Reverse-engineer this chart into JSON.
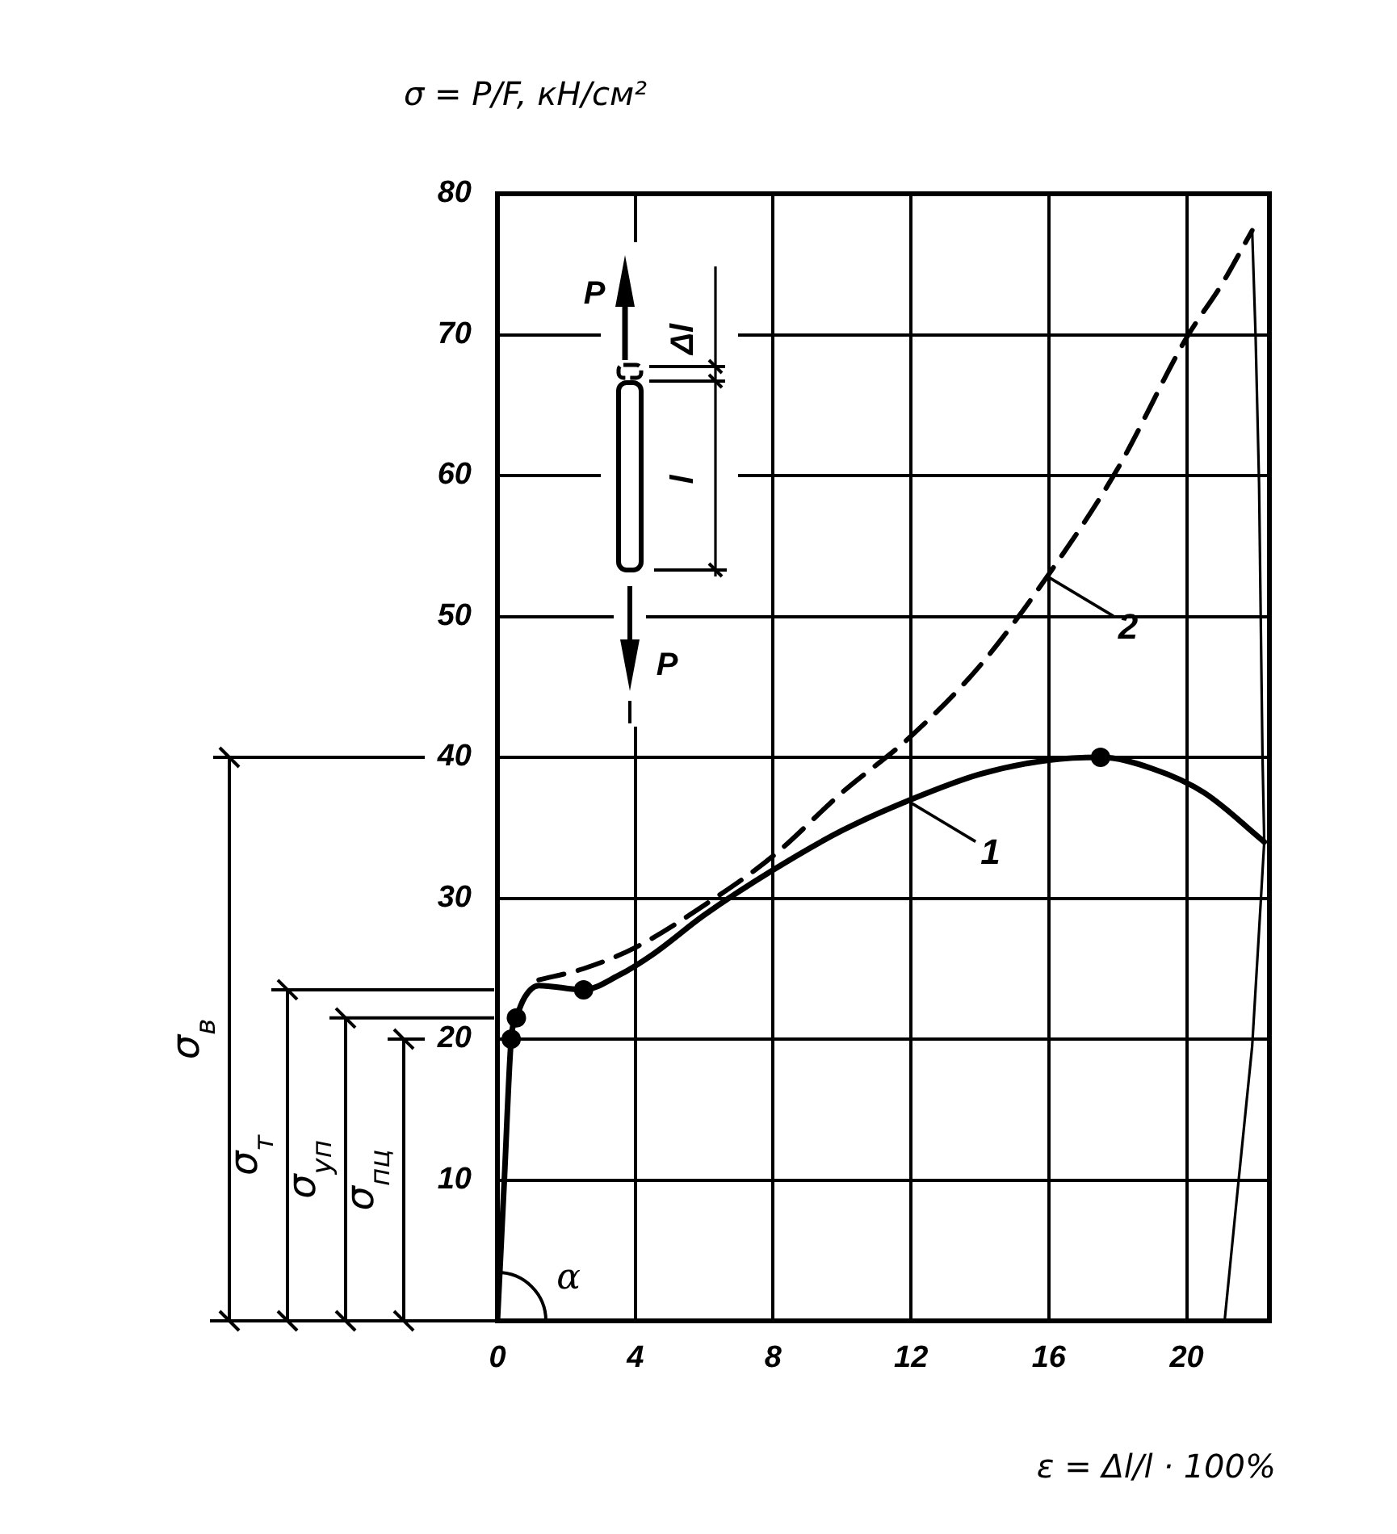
{
  "chart_data": {
    "type": "line",
    "xlabel": "ε = Δl/l · 100%",
    "ylabel": "σ = P/F, кН/см²",
    "xlim": [
      0,
      22.4
    ],
    "xticks": [
      0,
      4,
      8,
      12,
      16,
      20
    ],
    "ylim": [
      0,
      80
    ],
    "yticks": [
      10,
      20,
      30,
      40,
      50,
      60,
      70,
      80
    ],
    "grid": true,
    "marker": "none",
    "line_style": "solid",
    "series": [
      {
        "name": "1",
        "color": "#000000",
        "x": [
          0,
          0.2,
          0.4,
          0.55,
          0.8,
          1.2,
          2.5,
          3.5,
          4.5,
          6,
          8,
          10,
          12,
          14,
          16,
          17.5,
          19,
          20.5,
          22.25
        ],
        "values": [
          0,
          10,
          20,
          21.5,
          23,
          23.8,
          23.5,
          24.5,
          26,
          28.8,
          32,
          34.8,
          37,
          38.8,
          39.8,
          40,
          39.2,
          37.5,
          34
        ]
      },
      {
        "name": "2",
        "color": "#000000",
        "line_style": "dashed",
        "x": [
          1.2,
          2.5,
          4,
          6,
          8,
          10,
          12,
          14,
          16,
          18,
          20,
          21,
          21.9
        ],
        "values": [
          24.2,
          25,
          26.5,
          29.5,
          33,
          37.5,
          41.5,
          46.5,
          53,
          60.5,
          69.8,
          73.5,
          77.4
        ]
      },
      {
        "color": "#000000",
        "x": [
          21.9,
          22,
          22.1,
          22.15,
          22.2,
          22.25,
          22.1,
          21.9,
          21.45,
          21.1
        ],
        "values": [
          77.4,
          69.8,
          59.4,
          49.5,
          40,
          34,
          27.7,
          19.5,
          8.6,
          0
        ]
      },
      {
        "type": "scatter",
        "color": "#000000",
        "marker": "circle",
        "x": [
          0.4,
          0.55,
          2.5,
          17.5
        ],
        "values": [
          20,
          21.5,
          23.5,
          40
        ]
      }
    ],
    "annotations": [
      "P",
      "Δl",
      "l",
      "P",
      "α",
      "σ$_{пц}$",
      "σ$_{уп}$",
      "σ$_{т}$",
      "σ$_{в}$"
    ]
  }
}
